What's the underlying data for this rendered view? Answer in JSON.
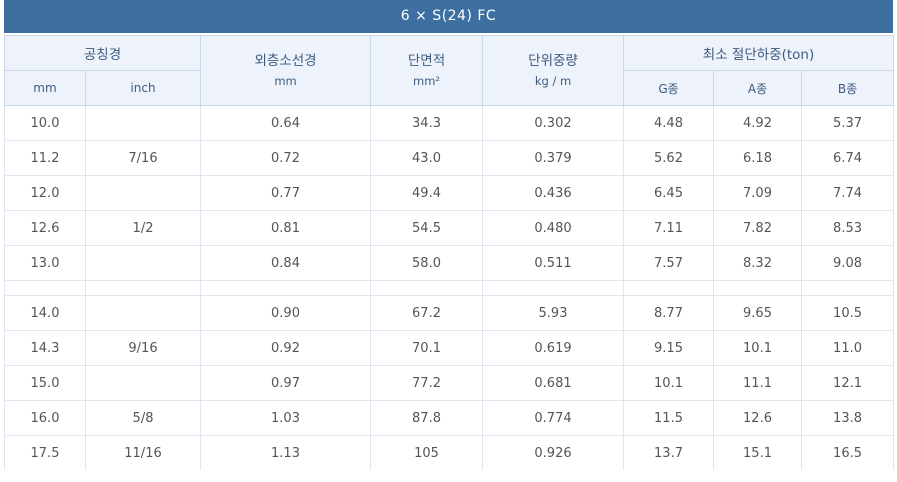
{
  "title": "6 × S(24) FC",
  "headers": {
    "nominal_diameter": "공칭경",
    "nominal_mm": "mm",
    "nominal_inch": "inch",
    "outer_wire_diameter": "외층소선경",
    "outer_wire_unit": "mm",
    "cross_section": "단면적",
    "cross_section_unit": "mm²",
    "unit_weight": "단위중량",
    "unit_weight_unit": "kg / m",
    "min_breaking_load": "최소 절단하중(ton)",
    "grade_g": "G종",
    "grade_a": "A종",
    "grade_b": "B종"
  },
  "group1": [
    {
      "mm": "10.0",
      "inch": "",
      "wire": "0.64",
      "area": "34.3",
      "weight": "0.302",
      "g": "4.48",
      "a": "4.92",
      "b": "5.37"
    },
    {
      "mm": "11.2",
      "inch": "7/16",
      "wire": "0.72",
      "area": "43.0",
      "weight": "0.379",
      "g": "5.62",
      "a": "6.18",
      "b": "6.74"
    },
    {
      "mm": "12.0",
      "inch": "",
      "wire": "0.77",
      "area": "49.4",
      "weight": "0.436",
      "g": "6.45",
      "a": "7.09",
      "b": "7.74"
    },
    {
      "mm": "12.6",
      "inch": "1/2",
      "wire": "0.81",
      "area": "54.5",
      "weight": "0.480",
      "g": "7.11",
      "a": "7.82",
      "b": "8.53"
    },
    {
      "mm": "13.0",
      "inch": "",
      "wire": "0.84",
      "area": "58.0",
      "weight": "0.511",
      "g": "7.57",
      "a": "8.32",
      "b": "9.08"
    }
  ],
  "group2": [
    {
      "mm": "14.0",
      "inch": "",
      "wire": "0.90",
      "area": "67.2",
      "weight": "5.93",
      "g": "8.77",
      "a": "9.65",
      "b": "10.5"
    },
    {
      "mm": "14.3",
      "inch": "9/16",
      "wire": "0.92",
      "area": "70.1",
      "weight": "0.619",
      "g": "9.15",
      "a": "10.1",
      "b": "11.0"
    },
    {
      "mm": "15.0",
      "inch": "",
      "wire": "0.97",
      "area": "77.2",
      "weight": "0.681",
      "g": "10.1",
      "a": "11.1",
      "b": "12.1"
    },
    {
      "mm": "16.0",
      "inch": "5/8",
      "wire": "1.03",
      "area": "87.8",
      "weight": "0.774",
      "g": "11.5",
      "a": "12.6",
      "b": "13.8"
    },
    {
      "mm": "17.5",
      "inch": "11/16",
      "wire": "1.13",
      "area": "105",
      "weight": "0.926",
      "g": "13.7",
      "a": "15.1",
      "b": "16.5"
    }
  ]
}
